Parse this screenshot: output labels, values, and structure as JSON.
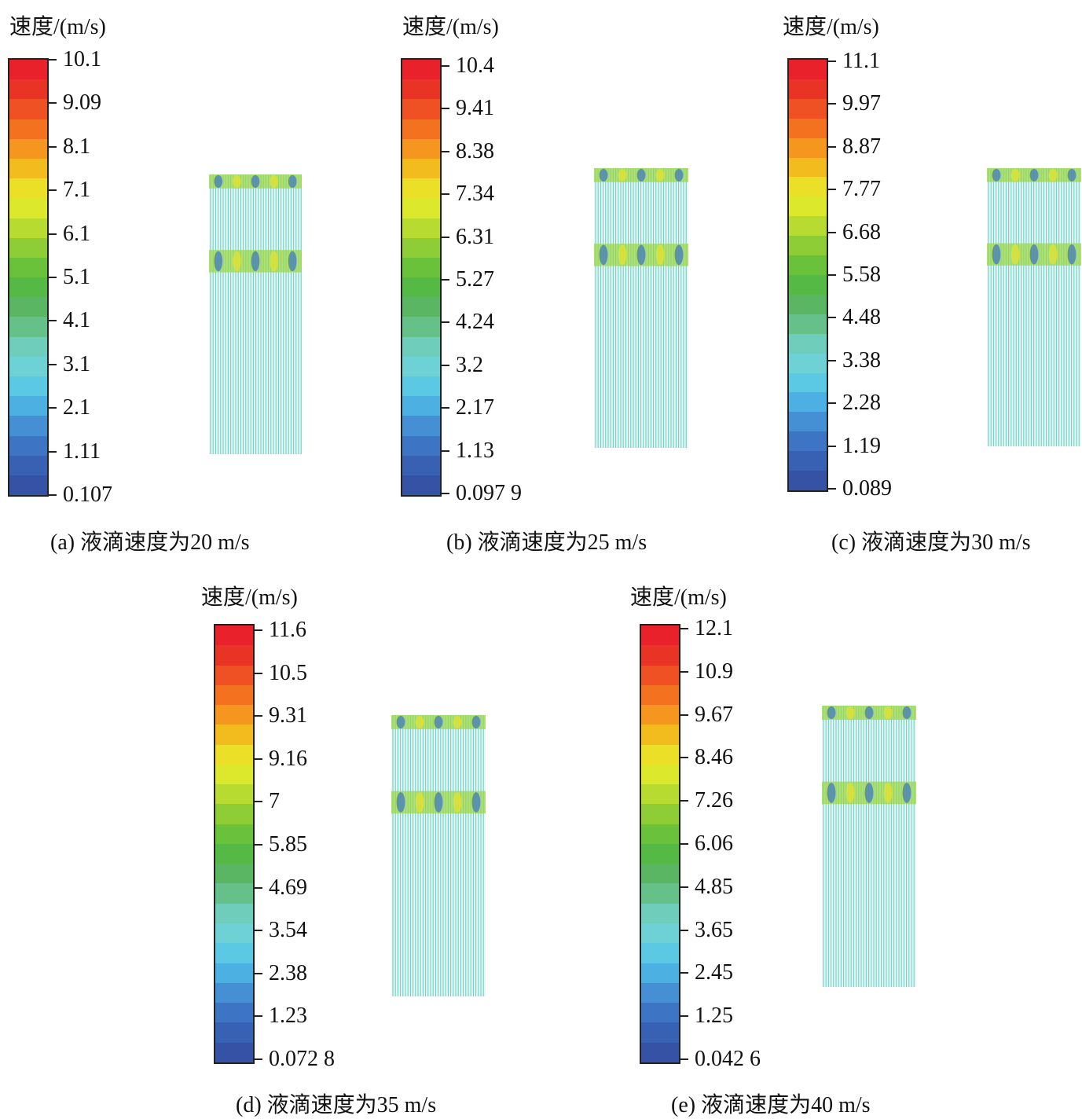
{
  "colorbar_colors": [
    "#e8212a",
    "#e83325",
    "#ef5024",
    "#f47120",
    "#f5961f",
    "#f2bc1f",
    "#ecdf27",
    "#dbe82c",
    "#b7db30",
    "#8fcd36",
    "#6ac23a",
    "#55b946",
    "#5ab663",
    "#66c08a",
    "#6ecdbb",
    "#6dd1d6",
    "#5bc8e4",
    "#4db0e3",
    "#4590d5",
    "#3d74c3",
    "#3861b3",
    "#3552a4"
  ],
  "panels": [
    {
      "id": "a",
      "unit_label": "速度/(m/s)",
      "ticks": [
        "10.1",
        "9.09",
        "8.1",
        "7.1",
        "6.1",
        "5.1",
        "4.1",
        "3.1",
        "2.1",
        "1.11",
        "0.107"
      ],
      "caption": "(a) 液滴速度为20 m/s"
    },
    {
      "id": "b",
      "unit_label": "速度/(m/s)",
      "ticks": [
        "10.4",
        "9.41",
        "8.38",
        "7.34",
        "6.31",
        "5.27",
        "4.24",
        "3.2",
        "2.17",
        "1.13",
        "0.097 9"
      ],
      "caption": "(b) 液滴速度为25 m/s"
    },
    {
      "id": "c",
      "unit_label": "速度/(m/s)",
      "ticks": [
        "11.1",
        "9.97",
        "8.87",
        "7.77",
        "6.68",
        "5.58",
        "4.48",
        "3.38",
        "2.28",
        "1.19",
        "0.089"
      ],
      "caption": "(c) 液滴速度为30 m/s"
    },
    {
      "id": "d",
      "unit_label": "速度/(m/s)",
      "ticks": [
        "11.6",
        "10.5",
        "9.31",
        "9.16",
        "7",
        "5.85",
        "4.69",
        "3.54",
        "2.38",
        "1.23",
        "0.072 8"
      ],
      "caption": "(d) 液滴速度为35 m/s"
    },
    {
      "id": "e",
      "unit_label": "速度/(m/s)",
      "ticks": [
        "12.1",
        "10.9",
        "9.67",
        "8.46",
        "7.26",
        "6.06",
        "4.85",
        "3.65",
        "2.45",
        "1.25",
        "0.042 6"
      ],
      "caption": "(e) 液滴速度为40 m/s"
    }
  ]
}
